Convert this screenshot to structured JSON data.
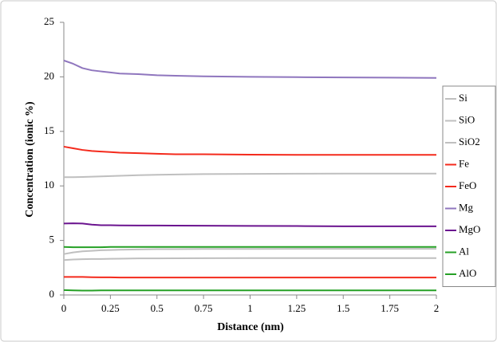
{
  "chart_data": {
    "type": "line",
    "x_label": "Distance (nm)",
    "y_label": "Concentration (ionic %)",
    "x": [
      0,
      0.05,
      0.1,
      0.15,
      0.2,
      0.25,
      0.3,
      0.4,
      0.5,
      0.6,
      0.75,
      1,
      1.25,
      1.5,
      1.75,
      2
    ],
    "series": [
      {
        "name": "Si",
        "color": "#bfbfbf",
        "values": [
          3.2,
          3.25,
          3.28,
          3.3,
          3.3,
          3.32,
          3.33,
          3.35,
          3.35,
          3.36,
          3.37,
          3.38,
          3.38,
          3.38,
          3.38,
          3.38
        ]
      },
      {
        "name": "SiO",
        "color": "#bfbfbf",
        "values": [
          3.75,
          3.9,
          4.0,
          4.05,
          4.1,
          4.12,
          4.15,
          4.18,
          4.2,
          4.2,
          4.22,
          4.22,
          4.23,
          4.23,
          4.23,
          4.23
        ]
      },
      {
        "name": "SiO2",
        "color": "#bfbfbf",
        "values": [
          10.8,
          10.8,
          10.82,
          10.85,
          10.87,
          10.9,
          10.93,
          10.98,
          11.02,
          11.05,
          11.08,
          11.1,
          11.12,
          11.13,
          11.13,
          11.13
        ]
      },
      {
        "name": "Fe",
        "color": "#f42a1c",
        "values": [
          1.65,
          1.65,
          1.65,
          1.63,
          1.62,
          1.62,
          1.6,
          1.6,
          1.6,
          1.6,
          1.6,
          1.6,
          1.6,
          1.6,
          1.6,
          1.6
        ]
      },
      {
        "name": "FeO",
        "color": "#f42a1c",
        "values": [
          13.6,
          13.45,
          13.3,
          13.2,
          13.15,
          13.1,
          13.05,
          13.0,
          12.95,
          12.9,
          12.9,
          12.87,
          12.85,
          12.85,
          12.85,
          12.85
        ]
      },
      {
        "name": "Mg",
        "color": "#8f76be",
        "values": [
          21.5,
          21.2,
          20.8,
          20.6,
          20.5,
          20.4,
          20.3,
          20.25,
          20.15,
          20.1,
          20.05,
          20.0,
          19.97,
          19.95,
          19.93,
          19.9
        ]
      },
      {
        "name": "MgO",
        "color": "#6b148f",
        "values": [
          6.55,
          6.57,
          6.55,
          6.45,
          6.4,
          6.4,
          6.38,
          6.37,
          6.37,
          6.36,
          6.35,
          6.33,
          6.32,
          6.3,
          6.3,
          6.3
        ]
      },
      {
        "name": "Al",
        "color": "#25a025",
        "values": [
          4.4,
          4.38,
          4.38,
          4.38,
          4.38,
          4.4,
          4.4,
          4.4,
          4.4,
          4.4,
          4.4,
          4.4,
          4.4,
          4.4,
          4.4,
          4.4
        ]
      },
      {
        "name": "AlO",
        "color": "#25a025",
        "values": [
          0.45,
          0.42,
          0.4,
          0.4,
          0.42,
          0.42,
          0.42,
          0.42,
          0.42,
          0.42,
          0.42,
          0.42,
          0.42,
          0.42,
          0.42,
          0.42
        ]
      }
    ],
    "xlim": [
      0,
      2
    ],
    "xticks": [
      0,
      0.25,
      0.5,
      0.75,
      1,
      1.25,
      1.5,
      1.75,
      2
    ],
    "ylim": [
      0,
      25
    ],
    "yticks": [
      0,
      5,
      10,
      15,
      20,
      25
    ],
    "grid": false,
    "legend": "right"
  }
}
